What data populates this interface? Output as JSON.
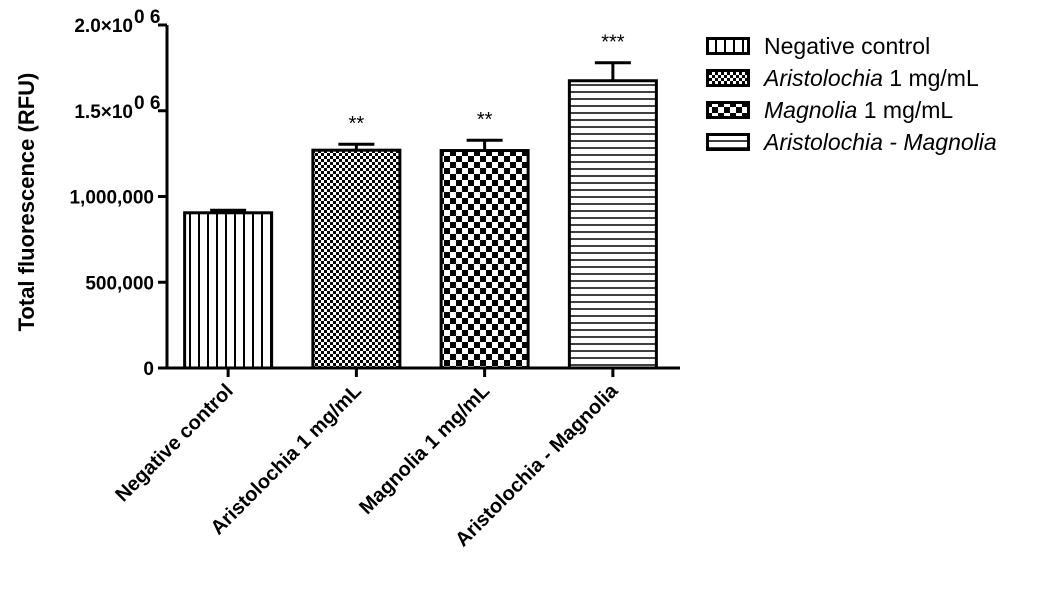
{
  "chart_data": {
    "type": "bar",
    "title": "",
    "xlabel": "",
    "ylabel": "Total fluorescence (RFU)",
    "ylim": [
      0,
      2000000
    ],
    "y_tick_values": [
      0,
      500000,
      1000000,
      1500000,
      2000000
    ],
    "y_tick_labels": [
      "0",
      "500,000",
      "1,000,000",
      "1.5×10",
      "2.0×10"
    ],
    "y_tick_exponent": "0 6",
    "categories": [
      "Negative control",
      "Aristolochia 1 mg/mL",
      "Magnolia 1 mg/mL",
      "Aristolochia - Magnolia"
    ],
    "values": [
      905000,
      1270000,
      1268000,
      1675000
    ],
    "errors": [
      15000,
      35000,
      60000,
      105000
    ],
    "significance": [
      "",
      "**",
      "**",
      "***"
    ],
    "patterns": [
      "vertical-lines",
      "fine-checker",
      "checkerboard",
      "horizontal-lines"
    ],
    "legend": {
      "position": "right",
      "entries": [
        {
          "italic": "",
          "text": "Negative control"
        },
        {
          "italic": "Aristolochia",
          "text": " 1 mg/mL"
        },
        {
          "italic": "Magnolia",
          "text": " 1 mg/mL"
        },
        {
          "italic": "Aristolochia - Magnolia",
          "text": ""
        }
      ]
    },
    "grid": false
  }
}
